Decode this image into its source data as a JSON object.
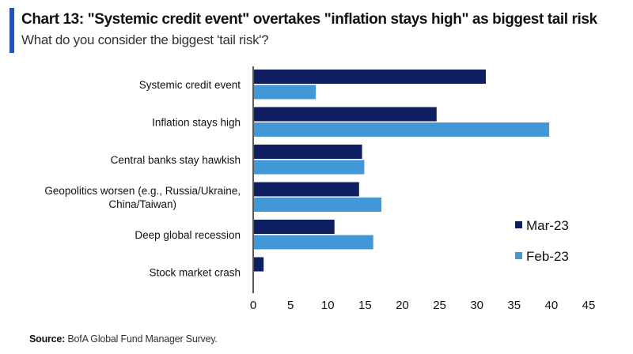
{
  "header": {
    "title": "Chart 13: \"Systemic credit event\" overtakes \"inflation stays high\" as biggest tail risk",
    "subtitle": "What do you consider the biggest 'tail risk'?"
  },
  "footer": {
    "source_label": "Source:",
    "source_text": "BofA Global Fund Manager Survey."
  },
  "colors": {
    "accent": "#2353b8",
    "mar23": "#0f1f63",
    "feb23": "#4197d8"
  },
  "chart_data": {
    "type": "bar",
    "orientation": "horizontal",
    "title": "Chart 13: \"Systemic credit event\" overtakes \"inflation stays high\" as biggest tail risk",
    "subtitle": "What do you consider the biggest 'tail risk'?",
    "xlabel": "",
    "ylabel": "",
    "categories": [
      [
        "Systemic credit event"
      ],
      [
        "Inflation stays high"
      ],
      [
        "Central banks stay hawkish"
      ],
      [
        "Geopolitics worsen (e.g., Russia/Ukraine,",
        "China/Taiwan)"
      ],
      [
        "Deep global recession"
      ],
      [
        "Stock market crash"
      ]
    ],
    "series": [
      {
        "name": "Mar-23",
        "color": "#0f1f63",
        "values": [
          31.2,
          24.6,
          14.6,
          14.2,
          10.9,
          1.4
        ]
      },
      {
        "name": "Feb-23",
        "color": "#4197d8",
        "values": [
          8.4,
          39.7,
          14.9,
          17.2,
          16.1,
          0
        ]
      }
    ],
    "xlim": [
      0,
      45
    ],
    "xticks": [
      0,
      5,
      10,
      15,
      20,
      25,
      30,
      35,
      40,
      45
    ],
    "grid": false,
    "legend": {
      "position": "right",
      "entries": [
        "Mar-23",
        "Feb-23"
      ]
    }
  }
}
